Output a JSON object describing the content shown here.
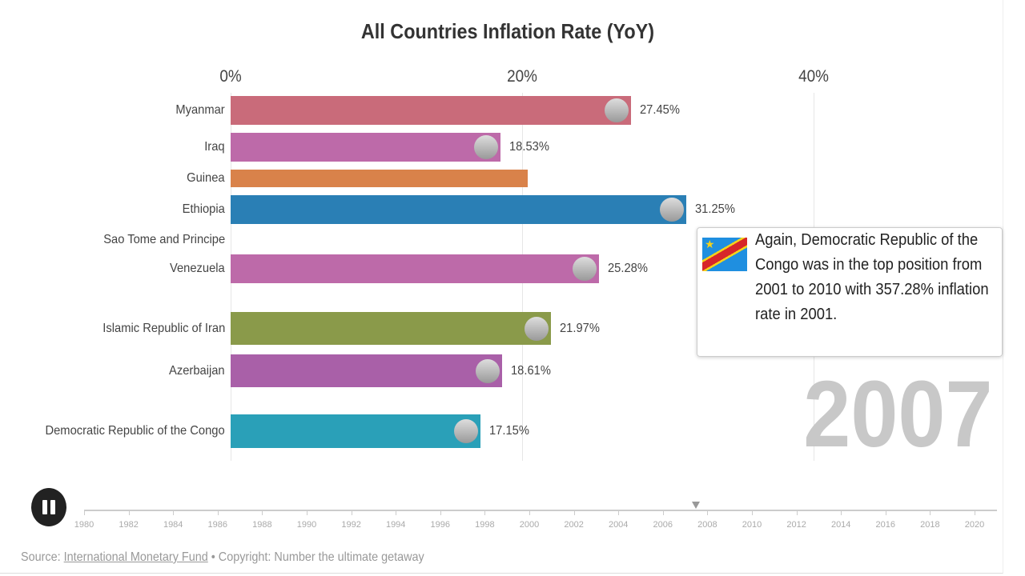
{
  "chart_data": {
    "type": "bar",
    "orientation": "horizontal",
    "title": "All Countries Inflation Rate (YoY)",
    "x_ticks": [
      "0%",
      "20%",
      "40%"
    ],
    "xlim": [
      0,
      52
    ],
    "bars": [
      {
        "name": "Myanmar",
        "value": 27.45,
        "label": "27.45%",
        "color": "#c96b7a"
      },
      {
        "name": "Iraq",
        "value": 18.53,
        "label": "18.53%",
        "color": "#bd6aa9"
      },
      {
        "name": "Guinea",
        "value": 20.4,
        "label": "",
        "color": "#d9824a"
      },
      {
        "name": "Ethiopia",
        "value": 31.25,
        "label": "31.25%",
        "color": "#2a7fb5"
      },
      {
        "name": "Sao Tome and Principe",
        "value": null,
        "label": "",
        "color": "#2a7fb5"
      },
      {
        "name": "Venezuela",
        "value": 25.28,
        "label": "25.28%",
        "color": "#bd6aa9"
      },
      {
        "name": "Islamic Republic of Iran",
        "value": 21.97,
        "label": "21.97%",
        "color": "#8a9a4a"
      },
      {
        "name": "Azerbaijan",
        "value": 18.61,
        "label": "18.61%",
        "color": "#a960a8"
      },
      {
        "name": "Democratic Republic of the Congo",
        "value": 17.15,
        "label": "17.15%",
        "color": "#2aa0b8"
      }
    ],
    "current_year": "2007",
    "grid": true
  },
  "tooltip": {
    "text": "Again, Democratic Republic of the Congo was in the top position from 2001 to 2010 with 357.28% inflation rate in 2001.",
    "flag": "drc-flag-icon"
  },
  "timeline": {
    "years": [
      "1980",
      "1982",
      "1984",
      "1986",
      "1988",
      "1990",
      "1992",
      "1994",
      "1996",
      "1998",
      "2000",
      "2002",
      "2004",
      "2006",
      "2008",
      "2010",
      "2012",
      "2014",
      "2016",
      "2018",
      "2020"
    ],
    "current": 2007.4,
    "control": "pause-icon"
  },
  "footer": {
    "source_prefix": "Source: ",
    "source_link": "International Monetary Fund",
    "copyright": " • Copyright: Number the ultimate getaway"
  }
}
